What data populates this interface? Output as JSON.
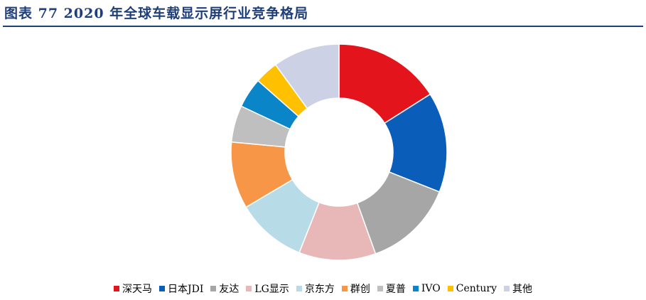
{
  "title": "图表 77   2020 年全球车载显示屏行业竞争格局",
  "chart_data": {
    "type": "pie",
    "subtype": "donut",
    "title": "图表 77   2020 年全球车载显示屏行业竞争格局",
    "legend_position": "bottom",
    "series": [
      {
        "name": "深天马",
        "value": 16.0,
        "color": "#e3141c"
      },
      {
        "name": "日本JDI",
        "value": 15.0,
        "color": "#0a5db8"
      },
      {
        "name": "友达",
        "value": 13.5,
        "color": "#a6a6a6"
      },
      {
        "name": "LG显示",
        "value": 11.5,
        "color": "#e8b8b8"
      },
      {
        "name": "京东方",
        "value": 10.5,
        "color": "#b7dce8"
      },
      {
        "name": "群创",
        "value": 10.0,
        "color": "#f79646"
      },
      {
        "name": "夏普",
        "value": 5.5,
        "color": "#bfbfbf"
      },
      {
        "name": "IVO",
        "value": 4.5,
        "color": "#0a86c8"
      },
      {
        "name": "Century",
        "value": 3.5,
        "color": "#ffc000"
      },
      {
        "name": "其他",
        "value": 10.0,
        "color": "#cdd1e6"
      }
    ]
  }
}
